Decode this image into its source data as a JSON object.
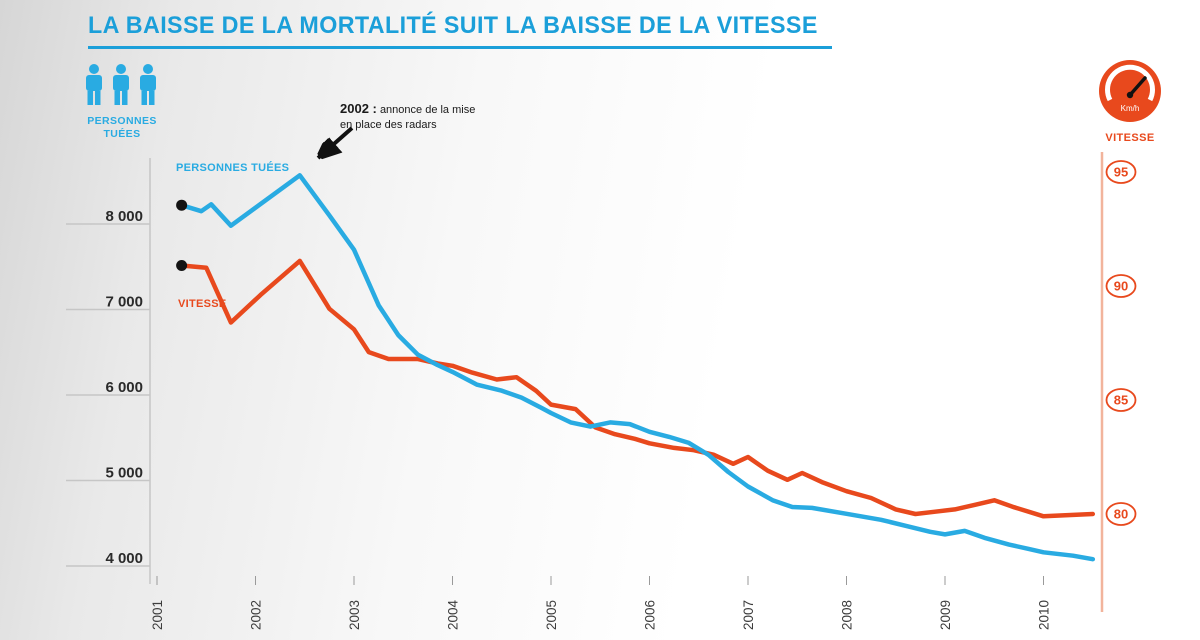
{
  "title": "LA BAISSE DE LA MORTALITÉ SUIT LA BAISSE DE LA VITESSE",
  "legend_left": {
    "line1": "PERSONNES",
    "line2": "TUÉES"
  },
  "legend_right": {
    "label": "VITESSE",
    "icon_text": "Km/h"
  },
  "annotation": {
    "year": "2002 :",
    "line1": "annonce de la mise",
    "line2": "en place des radars"
  },
  "series_labels": {
    "deaths": "PERSONNES TUÉES",
    "speed": "VITESSE"
  },
  "colors": {
    "blue": "#29abe2",
    "title_blue": "#1b9fd9",
    "orange": "#e8491d",
    "orange_light": "#f2b49c",
    "axis_gray": "#c6c6c6",
    "tick_text": "#3d3d3d",
    "dot_black": "#141414"
  },
  "chart_data": {
    "type": "line",
    "title": "LA BAISSE DE LA MORTALITÉ SUIT LA BAISSE DE LA VITESSE",
    "x_ticks": [
      "2001",
      "2002",
      "2003",
      "2004",
      "2005",
      "2006",
      "2007",
      "2008",
      "2009",
      "2010"
    ],
    "left_axis": {
      "label": "PERSONNES TUÉES",
      "ticks": [
        {
          "label": "8 000",
          "value": 8000
        },
        {
          "label": "7 000",
          "value": 7000
        },
        {
          "label": "6 000",
          "value": 6000
        },
        {
          "label": "5 000",
          "value": 5000
        },
        {
          "label": "4 000",
          "value": 4000
        }
      ],
      "range": [
        3900,
        8800
      ]
    },
    "right_axis": {
      "label": "VITESSE",
      "ticks": [
        {
          "label": "95",
          "value": 95
        },
        {
          "label": "90",
          "value": 90
        },
        {
          "label": "85",
          "value": 85
        },
        {
          "label": "80",
          "value": 80
        }
      ],
      "range": [
        78,
        96
      ]
    },
    "series": [
      {
        "name": "VITESSE",
        "axis": "right",
        "color": "#e8491d",
        "points": [
          [
            2001.25,
            90.9
          ],
          [
            2001.5,
            90.8
          ],
          [
            2001.75,
            88.4
          ],
          [
            2002.05,
            89.6
          ],
          [
            2002.45,
            91.1
          ],
          [
            2002.75,
            89.0
          ],
          [
            2003.0,
            88.1
          ],
          [
            2003.15,
            87.1
          ],
          [
            2003.35,
            86.8
          ],
          [
            2003.65,
            86.8
          ],
          [
            2003.85,
            86.6
          ],
          [
            2004.0,
            86.5
          ],
          [
            2004.2,
            86.2
          ],
          [
            2004.45,
            85.9
          ],
          [
            2004.65,
            86.0
          ],
          [
            2004.85,
            85.4
          ],
          [
            2005.0,
            84.8
          ],
          [
            2005.25,
            84.6
          ],
          [
            2005.45,
            83.8
          ],
          [
            2005.65,
            83.5
          ],
          [
            2005.85,
            83.3
          ],
          [
            2006.0,
            83.1
          ],
          [
            2006.25,
            82.9
          ],
          [
            2006.45,
            82.8
          ],
          [
            2006.65,
            82.6
          ],
          [
            2006.85,
            82.2
          ],
          [
            2007.0,
            82.5
          ],
          [
            2007.2,
            81.9
          ],
          [
            2007.4,
            81.5
          ],
          [
            2007.55,
            81.8
          ],
          [
            2007.75,
            81.4
          ],
          [
            2008.0,
            81.0
          ],
          [
            2008.25,
            80.7
          ],
          [
            2008.5,
            80.2
          ],
          [
            2008.7,
            80.0
          ],
          [
            2008.9,
            80.1
          ],
          [
            2009.1,
            80.2
          ],
          [
            2009.3,
            80.4
          ],
          [
            2009.5,
            80.6
          ],
          [
            2009.7,
            80.3
          ],
          [
            2010.0,
            79.9
          ],
          [
            2010.5,
            80.0
          ]
        ]
      },
      {
        "name": "PERSONNES TUÉES",
        "axis": "left",
        "color": "#29abe2",
        "points": [
          [
            2001.25,
            8220
          ],
          [
            2001.45,
            8150
          ],
          [
            2001.55,
            8230
          ],
          [
            2001.75,
            7980
          ],
          [
            2002.45,
            8570
          ],
          [
            2002.75,
            8100
          ],
          [
            2003.0,
            7700
          ],
          [
            2003.25,
            7050
          ],
          [
            2003.45,
            6700
          ],
          [
            2003.65,
            6470
          ],
          [
            2003.85,
            6350
          ],
          [
            2004.0,
            6270
          ],
          [
            2004.25,
            6120
          ],
          [
            2004.5,
            6050
          ],
          [
            2004.7,
            5970
          ],
          [
            2004.9,
            5850
          ],
          [
            2005.0,
            5790
          ],
          [
            2005.2,
            5680
          ],
          [
            2005.4,
            5630
          ],
          [
            2005.6,
            5680
          ],
          [
            2005.8,
            5660
          ],
          [
            2006.0,
            5570
          ],
          [
            2006.2,
            5510
          ],
          [
            2006.4,
            5440
          ],
          [
            2006.6,
            5300
          ],
          [
            2006.8,
            5100
          ],
          [
            2007.0,
            4930
          ],
          [
            2007.25,
            4770
          ],
          [
            2007.45,
            4690
          ],
          [
            2007.65,
            4680
          ],
          [
            2008.0,
            4610
          ],
          [
            2008.35,
            4540
          ],
          [
            2008.6,
            4470
          ],
          [
            2008.85,
            4400
          ],
          [
            2009.0,
            4370
          ],
          [
            2009.2,
            4410
          ],
          [
            2009.4,
            4330
          ],
          [
            2009.65,
            4250
          ],
          [
            2009.85,
            4200
          ],
          [
            2010.0,
            4160
          ],
          [
            2010.3,
            4120
          ],
          [
            2010.5,
            4080
          ]
        ]
      }
    ],
    "annotation": "2002 : annonce de la mise en place des radars",
    "grid": false,
    "legend_position": "top-corners"
  }
}
